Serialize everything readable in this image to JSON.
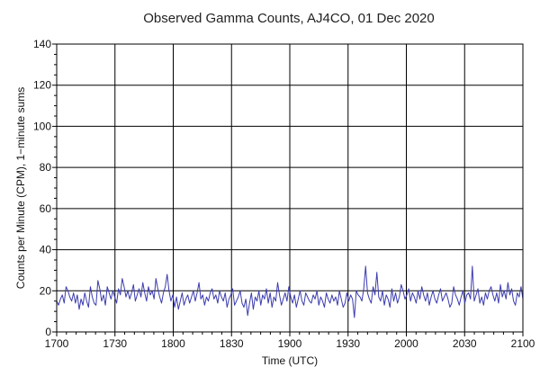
{
  "chart_data": {
    "type": "line",
    "title": "Observed Gamma Counts, AJ4CO, 01 Dec 2020",
    "xlabel": "Time (UTC)",
    "ylabel": "Counts per Minute (CPM), 1−minute sums",
    "xlim": [
      0,
      240
    ],
    "ylim": [
      0,
      140
    ],
    "x_ticks": [
      {
        "label": "1700",
        "minutes": 0
      },
      {
        "label": "1730",
        "minutes": 30
      },
      {
        "label": "1800",
        "minutes": 60
      },
      {
        "label": "1830",
        "minutes": 90
      },
      {
        "label": "1900",
        "minutes": 120
      },
      {
        "label": "1930",
        "minutes": 150
      },
      {
        "label": "2000",
        "minutes": 180
      },
      {
        "label": "2030",
        "minutes": 210
      },
      {
        "label": "2100",
        "minutes": 240
      }
    ],
    "y_ticks": [
      "0",
      "20",
      "40",
      "60",
      "80",
      "100",
      "120",
      "140"
    ],
    "grid": true,
    "series": [
      {
        "color": "#3b3bb0",
        "values": [
          15,
          13,
          16,
          18,
          14,
          22,
          20,
          17,
          15,
          19,
          14,
          18,
          11,
          16,
          13,
          19,
          15,
          12,
          22,
          17,
          14,
          13,
          25,
          21,
          15,
          18,
          13,
          22,
          19,
          16,
          20,
          17,
          14,
          21,
          18,
          26,
          22,
          17,
          20,
          16,
          19,
          23,
          15,
          18,
          21,
          17,
          24,
          19,
          15,
          22,
          18,
          20,
          16,
          26,
          21,
          17,
          14,
          19,
          22,
          28,
          20,
          15,
          18,
          12,
          17,
          11,
          15,
          19,
          13,
          16,
          18,
          14,
          17,
          20,
          15,
          19,
          24,
          16,
          18,
          13,
          17,
          15,
          19,
          21,
          16,
          18,
          14,
          20,
          17,
          15,
          19,
          12,
          16,
          18,
          21,
          13,
          15,
          17,
          20,
          14,
          12,
          16,
          8,
          14,
          19,
          11,
          17,
          15,
          20,
          13,
          18,
          16,
          21,
          14,
          19,
          12,
          17,
          15,
          24,
          18,
          13,
          16,
          19,
          15,
          22,
          17,
          14,
          18,
          12,
          16,
          20,
          15,
          13,
          19,
          17,
          15,
          14,
          18,
          16,
          20,
          13,
          17,
          15,
          12,
          19,
          16,
          14,
          18,
          15,
          17,
          13,
          20,
          16,
          12,
          14,
          19,
          15,
          18,
          16,
          7,
          20,
          18,
          17,
          15,
          21,
          32,
          19,
          16,
          14,
          22,
          18,
          29,
          17,
          15,
          20,
          13,
          18,
          16,
          12,
          21,
          15,
          19,
          14,
          17,
          23,
          20,
          16,
          18,
          21,
          15,
          19,
          17,
          14,
          20,
          16,
          22,
          18,
          15,
          19,
          13,
          17,
          20,
          16,
          14,
          18,
          21,
          15,
          17,
          19,
          16,
          12,
          14,
          22,
          18,
          16,
          13,
          17,
          20,
          14,
          18,
          19,
          16,
          32,
          15,
          18,
          21,
          14,
          17,
          13,
          19,
          16,
          20,
          22,
          18,
          15,
          19,
          14,
          23,
          17,
          20,
          16,
          24,
          18,
          21,
          15,
          13,
          19,
          17,
          22,
          16
        ]
      }
    ]
  }
}
